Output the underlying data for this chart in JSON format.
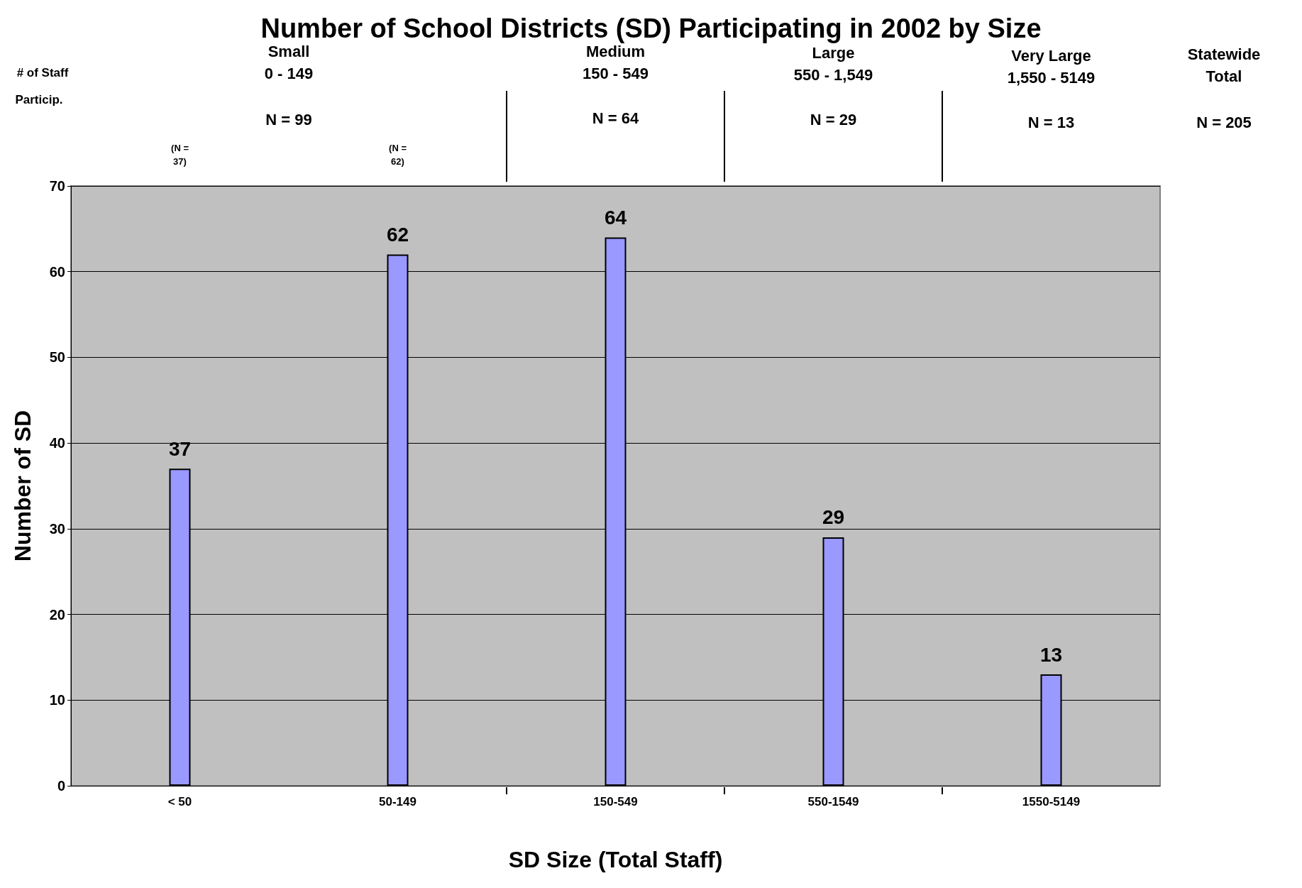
{
  "chart_data": {
    "type": "bar",
    "title": "Number of School Districts (SD) Participating in 2002 by Size",
    "xlabel": "SD Size (Total Staff)",
    "ylabel": "Number of SD",
    "categories": [
      "< 50",
      "50-149",
      "150-549",
      "550-1549",
      "1550-5149"
    ],
    "values": [
      37,
      62,
      64,
      29,
      13
    ],
    "color": "#9999ff",
    "ylim": [
      0,
      70
    ],
    "yticks": [
      0,
      10,
      20,
      30,
      40,
      50,
      60,
      70
    ],
    "grid": "y",
    "data_labels": true,
    "annotations": [
      "# of Staff",
      "Particip.",
      "Small\n0 - 149",
      "N = 99",
      "(N =\n37)",
      "(N =\n62)",
      "Medium\n150 - 549",
      "N = 64",
      "Large\n550 - 1,549",
      "N = 29",
      "Very Large\n1,550 - 5149",
      "N = 13",
      "Statewide\nTotal",
      "N = 205"
    ]
  }
}
